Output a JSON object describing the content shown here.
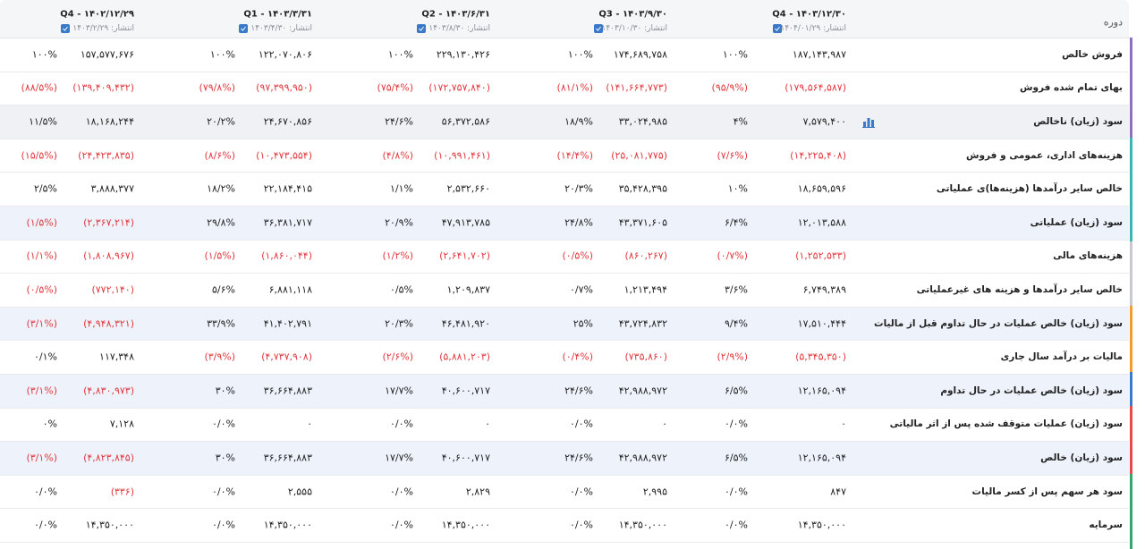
{
  "header": {
    "label": "دوره",
    "periods": [
      {
        "title": "Q4 - ۱۴۰۳/۱۲/۳۰",
        "published": "انتشار: ۱۴۰۴/۰۱/۲۹"
      },
      {
        "title": "Q3 - ۱۴۰۳/۹/۳۰",
        "published": "انتشار: ۱۴۰۳/۱۰/۳۰"
      },
      {
        "title": "Q2 - ۱۴۰۳/۶/۳۱",
        "published": "انتشار: ۱۴۰۳/۸/۳۰"
      },
      {
        "title": "Q1 - ۱۴۰۳/۳/۳۱",
        "published": "انتشار: ۱۴۰۳/۴/۳۰"
      },
      {
        "title": "Q4 - ۱۴۰۲/۱۲/۲۹",
        "published": "انتشار: ۱۴۰۳/۲/۲۹"
      }
    ]
  },
  "rows": [
    {
      "label": "فروش خالص",
      "cells": [
        {
          "value": "۱۸۷,۱۴۳,۹۸۷",
          "percent": "۱۰۰%"
        },
        {
          "value": "۱۷۴,۶۸۹,۷۵۸",
          "percent": "۱۰۰%"
        },
        {
          "value": "۲۲۹,۱۳۰,۴۲۶",
          "percent": "۱۰۰%"
        },
        {
          "value": "۱۲۲,۰۷۰,۸۰۶",
          "percent": "۱۰۰%"
        },
        {
          "value": "۱۵۷,۵۷۷,۶۷۶",
          "percent": "۱۰۰%"
        }
      ]
    },
    {
      "label": "بهای تمام شده فروش",
      "cells": [
        {
          "value": "(۱۷۹,۵۶۴,۵۸۷)",
          "percent": "(۹۵/۹%)"
        },
        {
          "value": "(۱۴۱,۶۶۴,۷۷۳)",
          "percent": "(۸۱/۱%)"
        },
        {
          "value": "(۱۷۲,۷۵۷,۸۴۰)",
          "percent": "(۷۵/۴%)"
        },
        {
          "value": "(۹۷,۳۹۹,۹۵۰)",
          "percent": "(۷۹/۸%)"
        },
        {
          "value": "(۱۳۹,۴۰۹,۴۳۲)",
          "percent": "(۸۸/۵%)"
        }
      ]
    },
    {
      "label": "سود (زیان) ناخالص",
      "cells": [
        {
          "value": "۷,۵۷۹,۴۰۰",
          "percent": "۴%"
        },
        {
          "value": "۳۳,۰۲۴,۹۸۵",
          "percent": "۱۸/۹%"
        },
        {
          "value": "۵۶,۳۷۲,۵۸۶",
          "percent": "۲۴/۶%"
        },
        {
          "value": "۲۴,۶۷۰,۸۵۶",
          "percent": "۲۰/۲%"
        },
        {
          "value": "۱۸,۱۶۸,۲۴۴",
          "percent": "۱۱/۵%"
        }
      ]
    },
    {
      "label": "هزینه‌های اداری، عمومی و فروش",
      "cells": [
        {
          "value": "(۱۴,۲۲۵,۴۰۸)",
          "percent": "(۷/۶%)"
        },
        {
          "value": "(۲۵,۰۸۱,۷۷۵)",
          "percent": "(۱۴/۴%)"
        },
        {
          "value": "(۱۰,۹۹۱,۴۶۱)",
          "percent": "(۴/۸%)"
        },
        {
          "value": "(۱۰,۴۷۳,۵۵۴)",
          "percent": "(۸/۶%)"
        },
        {
          "value": "(۲۴,۴۲۳,۸۳۵)",
          "percent": "(۱۵/۵%)"
        }
      ]
    },
    {
      "label": "خالص سایر درآمدها (هزینه‌ها)ی عملیاتی",
      "cells": [
        {
          "value": "۱۸,۶۵۹,۵۹۶",
          "percent": "۱۰%"
        },
        {
          "value": "۳۵,۴۲۸,۳۹۵",
          "percent": "۲۰/۳%"
        },
        {
          "value": "۲,۵۳۲,۶۶۰",
          "percent": "۱/۱%"
        },
        {
          "value": "۲۲,۱۸۴,۴۱۵",
          "percent": "۱۸/۲%"
        },
        {
          "value": "۳,۸۸۸,۳۷۷",
          "percent": "۲/۵%"
        }
      ]
    },
    {
      "label": "سود (زیان) عملیاتی",
      "cells": [
        {
          "value": "۱۲,۰۱۳,۵۸۸",
          "percent": "۶/۴%"
        },
        {
          "value": "۴۳,۳۷۱,۶۰۵",
          "percent": "۲۴/۸%"
        },
        {
          "value": "۴۷,۹۱۳,۷۸۵",
          "percent": "۲۰/۹%"
        },
        {
          "value": "۳۶,۳۸۱,۷۱۷",
          "percent": "۲۹/۸%"
        },
        {
          "value": "(۲,۳۶۷,۲۱۴)",
          "percent": "(۱/۵%)"
        }
      ]
    },
    {
      "label": "هزینه‌های مالی",
      "cells": [
        {
          "value": "(۱,۲۵۲,۵۳۳)",
          "percent": "(۰/۷%)"
        },
        {
          "value": "(۸۶۰,۲۶۷)",
          "percent": "(۰/۵%)"
        },
        {
          "value": "(۲,۶۴۱,۷۰۲)",
          "percent": "(۱/۲%)"
        },
        {
          "value": "(۱,۸۶۰,۰۴۴)",
          "percent": "(۱/۵%)"
        },
        {
          "value": "(۱,۸۰۸,۹۶۷)",
          "percent": "(۱/۱%)"
        }
      ]
    },
    {
      "label": "خالص سایر درآمدها و هزینه های غیرعملیاتی",
      "cells": [
        {
          "value": "۶,۷۴۹,۳۸۹",
          "percent": "۳/۶%"
        },
        {
          "value": "۱,۲۱۳,۴۹۴",
          "percent": "۰/۷%"
        },
        {
          "value": "۱,۲۰۹,۸۳۷",
          "percent": "۰/۵%"
        },
        {
          "value": "۶,۸۸۱,۱۱۸",
          "percent": "۵/۶%"
        },
        {
          "value": "(۷۷۲,۱۴۰)",
          "percent": "(۰/۵%)"
        }
      ]
    },
    {
      "label": "سود (زیان) خالص عملیات در حال تداوم قبل از مالیات",
      "cells": [
        {
          "value": "۱۷,۵۱۰,۴۴۴",
          "percent": "۹/۴%"
        },
        {
          "value": "۴۳,۷۲۴,۸۳۲",
          "percent": "۲۵%"
        },
        {
          "value": "۴۶,۴۸۱,۹۲۰",
          "percent": "۲۰/۳%"
        },
        {
          "value": "۴۱,۴۰۲,۷۹۱",
          "percent": "۳۳/۹%"
        },
        {
          "value": "(۴,۹۴۸,۳۲۱)",
          "percent": "(۳/۱%)"
        }
      ]
    },
    {
      "label": "مالیات بر درآمد سال جاری",
      "cells": [
        {
          "value": "(۵,۳۴۵,۳۵۰)",
          "percent": "(۲/۹%)"
        },
        {
          "value": "(۷۳۵,۸۶۰)",
          "percent": "(۰/۴%)"
        },
        {
          "value": "(۵,۸۸۱,۲۰۳)",
          "percent": "(۲/۶%)"
        },
        {
          "value": "(۴,۷۳۷,۹۰۸)",
          "percent": "(۳/۹%)"
        },
        {
          "value": "۱۱۷,۳۴۸",
          "percent": "۰/۱%"
        }
      ]
    },
    {
      "label": "سود (زیان) خالص عملیات در حال تداوم",
      "cells": [
        {
          "value": "۱۲,۱۶۵,۰۹۴",
          "percent": "۶/۵%"
        },
        {
          "value": "۴۲,۹۸۸,۹۷۲",
          "percent": "۲۴/۶%"
        },
        {
          "value": "۴۰,۶۰۰,۷۱۷",
          "percent": "۱۷/۷%"
        },
        {
          "value": "۳۶,۶۶۴,۸۸۳",
          "percent": "۳۰%"
        },
        {
          "value": "(۴,۸۳۰,۹۷۳)",
          "percent": "(۳/۱%)"
        }
      ]
    },
    {
      "label": "سود (زیان) عملیات متوقف شده پس از اثر مالیاتی",
      "cells": [
        {
          "value": "۰",
          "percent": "۰/۰%"
        },
        {
          "value": "۰",
          "percent": "۰/۰%"
        },
        {
          "value": "۰",
          "percent": "۰/۰%"
        },
        {
          "value": "۰",
          "percent": "۰/۰%"
        },
        {
          "value": "۷,۱۲۸",
          "percent": "۰%"
        }
      ]
    },
    {
      "label": "سود (زیان) خالص",
      "cells": [
        {
          "value": "۱۲,۱۶۵,۰۹۴",
          "percent": "۶/۵%"
        },
        {
          "value": "۴۲,۹۸۸,۹۷۲",
          "percent": "۲۴/۶%"
        },
        {
          "value": "۴۰,۶۰۰,۷۱۷",
          "percent": "۱۷/۷%"
        },
        {
          "value": "۳۶,۶۶۴,۸۸۳",
          "percent": "۳۰%"
        },
        {
          "value": "(۴,۸۲۳,۸۴۵)",
          "percent": "(۳/۱%)"
        }
      ]
    },
    {
      "label": "سود هر سهم پس از کسر مالیات",
      "cells": [
        {
          "value": "۸۴۷",
          "percent": "۰/۰%"
        },
        {
          "value": "۲,۹۹۵",
          "percent": "۰/۰%"
        },
        {
          "value": "۲,۸۲۹",
          "percent": "۰/۰%"
        },
        {
          "value": "۲,۵۵۵",
          "percent": "۰/۰%"
        },
        {
          "value": "(۳۳۶)",
          "percent": "۰/۰%"
        }
      ]
    },
    {
      "label": "سرمایه",
      "cells": [
        {
          "value": "۱۴,۳۵۰,۰۰۰",
          "percent": "۰/۰%"
        },
        {
          "value": "۱۴,۳۵۰,۰۰۰",
          "percent": "۰/۰%"
        },
        {
          "value": "۱۴,۳۵۰,۰۰۰",
          "percent": "۰/۰%"
        },
        {
          "value": "۱۴,۳۵۰,۰۰۰",
          "percent": "۰/۰%"
        },
        {
          "value": "۱۴,۳۵۰,۰۰۰",
          "percent": "۰/۰%"
        }
      ]
    }
  ]
}
